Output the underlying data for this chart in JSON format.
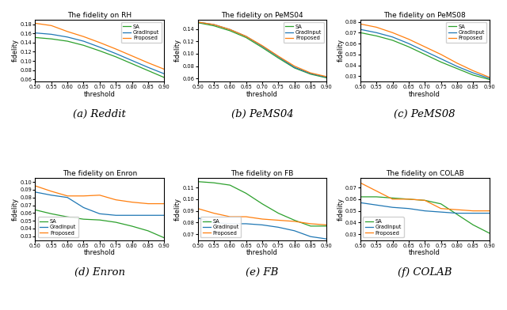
{
  "subplots": [
    {
      "title": "The fidelity on RH",
      "xlabel": "threshold",
      "ylabel": "fidelity",
      "caption": "(a) Reddit",
      "xlim": [
        0.5,
        0.9
      ],
      "ylim": [
        0.055,
        0.19
      ],
      "yticks": [
        0.06,
        0.08,
        0.1,
        0.12,
        0.14,
        0.16,
        0.18
      ],
      "xticks": [
        0.5,
        0.55,
        0.6,
        0.65,
        0.7,
        0.75,
        0.8,
        0.85,
        0.9
      ],
      "x_vals": [
        0.5,
        0.55,
        0.6,
        0.65,
        0.7,
        0.75,
        0.8,
        0.85,
        0.9
      ],
      "SA": [
        0.151,
        0.148,
        0.143,
        0.134,
        0.122,
        0.109,
        0.094,
        0.079,
        0.064
      ],
      "GradInput": [
        0.161,
        0.158,
        0.152,
        0.143,
        0.13,
        0.116,
        0.101,
        0.086,
        0.072
      ],
      "Proposed": [
        0.182,
        0.177,
        0.164,
        0.153,
        0.14,
        0.126,
        0.111,
        0.096,
        0.082
      ]
    },
    {
      "title": "The fidelity on PeMS04",
      "xlabel": "threshold",
      "ylabel": "fidelity",
      "caption": "(b) PeMS04",
      "xlim": [
        0.5,
        0.9
      ],
      "ylim": [
        0.055,
        0.155
      ],
      "yticks": [
        0.06,
        0.08,
        0.1,
        0.12,
        0.14
      ],
      "xticks": [
        0.5,
        0.55,
        0.6,
        0.65,
        0.7,
        0.75,
        0.8,
        0.85,
        0.9
      ],
      "x_vals": [
        0.5,
        0.55,
        0.6,
        0.65,
        0.7,
        0.75,
        0.8,
        0.85,
        0.9
      ],
      "SA": [
        0.15,
        0.145,
        0.137,
        0.126,
        0.11,
        0.093,
        0.077,
        0.067,
        0.061
      ],
      "GradInput": [
        0.151,
        0.147,
        0.139,
        0.128,
        0.112,
        0.095,
        0.078,
        0.068,
        0.062
      ],
      "Proposed": [
        0.151,
        0.147,
        0.139,
        0.128,
        0.113,
        0.096,
        0.08,
        0.069,
        0.063
      ]
    },
    {
      "title": "The fidelity on PeMS08",
      "xlabel": "threshold",
      "ylabel": "fidelity",
      "caption": "(c) PeMS08",
      "xlim": [
        0.5,
        0.9
      ],
      "ylim": [
        0.025,
        0.082
      ],
      "yticks": [
        0.03,
        0.04,
        0.05,
        0.06,
        0.07,
        0.08
      ],
      "xticks": [
        0.5,
        0.55,
        0.6,
        0.65,
        0.7,
        0.75,
        0.8,
        0.85,
        0.9
      ],
      "x_vals": [
        0.5,
        0.55,
        0.6,
        0.65,
        0.7,
        0.75,
        0.8,
        0.85,
        0.9
      ],
      "SA": [
        0.07,
        0.067,
        0.063,
        0.057,
        0.05,
        0.043,
        0.037,
        0.031,
        0.027
      ],
      "GradInput": [
        0.073,
        0.07,
        0.066,
        0.06,
        0.053,
        0.046,
        0.039,
        0.033,
        0.028
      ],
      "Proposed": [
        0.078,
        0.075,
        0.07,
        0.064,
        0.057,
        0.05,
        0.042,
        0.035,
        0.029
      ]
    },
    {
      "title": "The fidelity on Enron",
      "xlabel": "threshold",
      "ylabel": "fidelity",
      "caption": "(d) Enron",
      "xlim": [
        0.5,
        0.9
      ],
      "ylim": [
        0.025,
        0.105
      ],
      "yticks": [
        0.03,
        0.04,
        0.05,
        0.06,
        0.07,
        0.08,
        0.09,
        0.1
      ],
      "xticks": [
        0.5,
        0.55,
        0.6,
        0.65,
        0.7,
        0.75,
        0.8,
        0.85,
        0.9
      ],
      "x_vals": [
        0.5,
        0.55,
        0.6,
        0.65,
        0.7,
        0.75,
        0.8,
        0.85,
        0.9
      ],
      "SA": [
        0.064,
        0.059,
        0.055,
        0.052,
        0.051,
        0.048,
        0.043,
        0.037,
        0.028
      ],
      "GradInput": [
        0.087,
        0.083,
        0.08,
        0.067,
        0.059,
        0.057,
        0.057,
        0.057,
        0.057
      ],
      "Proposed": [
        0.095,
        0.088,
        0.082,
        0.082,
        0.083,
        0.077,
        0.074,
        0.072,
        0.072
      ]
    },
    {
      "title": "The fidelity on FB",
      "xlabel": "threshold",
      "ylabel": "fidelity",
      "caption": "(e) FB",
      "xlim": [
        0.5,
        0.9
      ],
      "ylim": [
        0.065,
        0.118
      ],
      "yticks": [
        0.07,
        0.08,
        0.09,
        0.1,
        0.11
      ],
      "xticks": [
        0.5,
        0.55,
        0.6,
        0.65,
        0.7,
        0.75,
        0.8,
        0.85,
        0.9
      ],
      "x_vals": [
        0.5,
        0.55,
        0.6,
        0.65,
        0.7,
        0.75,
        0.8,
        0.85,
        0.9
      ],
      "SA": [
        0.115,
        0.114,
        0.112,
        0.105,
        0.096,
        0.088,
        0.082,
        0.077,
        0.077
      ],
      "GradInput": [
        0.084,
        0.08,
        0.079,
        0.079,
        0.078,
        0.076,
        0.073,
        0.068,
        0.066
      ],
      "Proposed": [
        0.092,
        0.088,
        0.085,
        0.085,
        0.083,
        0.082,
        0.081,
        0.079,
        0.078
      ]
    },
    {
      "title": "The fidelity on COLAB",
      "xlabel": "threshold",
      "ylabel": "fidelity",
      "caption": "(f) COLAB",
      "xlim": [
        0.5,
        0.9
      ],
      "ylim": [
        0.025,
        0.078
      ],
      "yticks": [
        0.03,
        0.04,
        0.05,
        0.06,
        0.07
      ],
      "xticks": [
        0.5,
        0.55,
        0.6,
        0.65,
        0.7,
        0.75,
        0.8,
        0.85,
        0.9
      ],
      "x_vals": [
        0.5,
        0.55,
        0.6,
        0.65,
        0.7,
        0.75,
        0.8,
        0.85,
        0.9
      ],
      "SA": [
        0.062,
        0.062,
        0.061,
        0.06,
        0.059,
        0.056,
        0.047,
        0.038,
        0.031
      ],
      "GradInput": [
        0.057,
        0.055,
        0.053,
        0.052,
        0.05,
        0.049,
        0.048,
        0.048,
        0.048
      ],
      "Proposed": [
        0.074,
        0.067,
        0.06,
        0.06,
        0.059,
        0.052,
        0.051,
        0.05,
        0.05
      ]
    }
  ],
  "colors": {
    "SA": "#2ca02c",
    "GradInput": "#1f77b4",
    "Proposed": "#ff7f0e"
  },
  "fig_width": 6.4,
  "fig_height": 3.92
}
